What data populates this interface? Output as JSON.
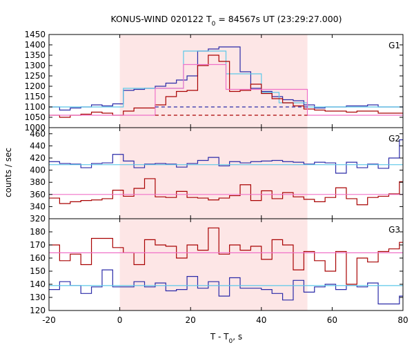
{
  "colors": {
    "shade": "#fde6e6",
    "blue": "#2a2aa8",
    "cyan": "#5cc8e8",
    "red": "#a80000",
    "pink": "#f070c8"
  },
  "chart_data": {
    "type": "line",
    "title": {
      "main": "KONUS-WIND 020122 T",
      "sub": "0",
      "rest": " = 84567s UT (23:29:27.000)"
    },
    "xlabel": {
      "main": "T - T",
      "sub": "0",
      "rest": ", s"
    },
    "ylabel": "counts / sec",
    "xlim": [
      -20,
      80
    ],
    "x_ticks": [
      -20,
      0,
      20,
      40,
      60,
      80
    ],
    "shaded_interval": [
      0,
      53
    ],
    "panels": [
      {
        "name": "G1",
        "ylim": [
          1000,
          1450
        ],
        "y_ticks": [
          1000,
          1050,
          1100,
          1150,
          1200,
          1250,
          1300,
          1350,
          1400,
          1450
        ],
        "series": [
          {
            "color": "blue",
            "style": "step",
            "edges": [
              -20,
              -17,
              -14,
              -11,
              -8,
              -5,
              -2,
              1,
              4,
              7,
              10,
              13,
              16,
              19,
              22,
              25,
              28,
              31,
              34,
              37,
              40,
              43,
              46,
              49,
              52,
              55,
              58,
              61,
              64,
              67,
              70,
              73,
              76,
              79,
              80
            ],
            "values": [
              1100,
              1085,
              1095,
              1100,
              1110,
              1105,
              1115,
              1180,
              1185,
              1190,
              1200,
              1215,
              1230,
              1250,
              1370,
              1380,
              1390,
              1390,
              1270,
              1190,
              1175,
              1150,
              1135,
              1130,
              1110,
              1095,
              1100,
              1100,
              1105,
              1105,
              1110,
              1100,
              1100,
              1100
            ]
          },
          {
            "color": "cyan",
            "style": "step",
            "edges": [
              -20,
              1,
              18,
              30,
              40,
              45,
              53,
              80
            ],
            "values": [
              1100,
              1190,
              1370,
              1260,
              1170,
              1120,
              1100
            ]
          },
          {
            "color": "red",
            "style": "step",
            "edges": [
              -20,
              -17,
              -14,
              -11,
              -8,
              -5,
              -2,
              1,
              4,
              7,
              10,
              13,
              16,
              19,
              22,
              25,
              28,
              31,
              34,
              37,
              40,
              43,
              46,
              49,
              52,
              55,
              58,
              61,
              64,
              67,
              70,
              73,
              76,
              79,
              80
            ],
            "values": [
              1060,
              1050,
              1060,
              1065,
              1075,
              1070,
              1060,
              1080,
              1095,
              1095,
              1110,
              1150,
              1175,
              1180,
              1300,
              1350,
              1320,
              1175,
              1180,
              1210,
              1165,
              1140,
              1120,
              1105,
              1090,
              1085,
              1080,
              1080,
              1075,
              1080,
              1080,
              1070,
              1070,
              1070
            ]
          },
          {
            "color": "pink",
            "style": "step",
            "edges": [
              -20,
              10,
              18,
              30,
              53,
              80
            ],
            "values": [
              1060,
              1190,
              1305,
              1185,
              1060
            ]
          },
          {
            "color": "blue",
            "style": "dashed",
            "edges": [
              10,
              53
            ],
            "values": [
              1100
            ]
          },
          {
            "color": "red",
            "style": "dashed",
            "edges": [
              10,
              53
            ],
            "values": [
              1060
            ]
          }
        ]
      },
      {
        "name": "G2",
        "ylim": [
          320,
          470
        ],
        "y_ticks": [
          320,
          340,
          360,
          380,
          400,
          420,
          440,
          460
        ],
        "series": [
          {
            "color": "blue",
            "style": "step",
            "edges": [
              -20,
              -17,
              -14,
              -11,
              -8,
              -5,
              -2,
              1,
              4,
              7,
              10,
              13,
              16,
              19,
              22,
              25,
              28,
              31,
              34,
              37,
              40,
              43,
              46,
              49,
              52,
              55,
              58,
              61,
              64,
              67,
              70,
              73,
              76,
              79,
              80
            ],
            "values": [
              414,
              411,
              410,
              404,
              411,
              412,
              426,
              415,
              404,
              410,
              411,
              410,
              405,
              411,
              416,
              421,
              407,
              414,
              412,
              414,
              415,
              416,
              414,
              413,
              410,
              413,
              412,
              395,
              413,
              404,
              410,
              403,
              420,
              450
            ]
          },
          {
            "color": "cyan",
            "style": "step",
            "edges": [
              -20,
              80
            ],
            "values": [
              409
            ]
          },
          {
            "color": "red",
            "style": "step",
            "edges": [
              -20,
              -17,
              -14,
              -11,
              -8,
              -5,
              -2,
              1,
              4,
              7,
              10,
              13,
              16,
              19,
              22,
              25,
              28,
              31,
              34,
              37,
              40,
              43,
              46,
              49,
              52,
              55,
              58,
              61,
              64,
              67,
              70,
              73,
              76,
              79,
              80
            ],
            "values": [
              354,
              345,
              348,
              350,
              351,
              353,
              367,
              357,
              370,
              386,
              356,
              355,
              365,
              355,
              354,
              351,
              354,
              358,
              376,
              350,
              366,
              353,
              363,
              356,
              352,
              348,
              355,
              371,
              353,
              343,
              355,
              357,
              361,
              381
            ]
          },
          {
            "color": "pink",
            "style": "step",
            "edges": [
              -20,
              80
            ],
            "values": [
              360
            ]
          }
        ]
      },
      {
        "name": "G3",
        "ylim": [
          120,
          190
        ],
        "y_ticks": [
          120,
          130,
          140,
          150,
          160,
          170,
          180
        ],
        "series": [
          {
            "color": "blue",
            "style": "step",
            "edges": [
              -20,
              -17,
              -14,
              -11,
              -8,
              -5,
              -2,
              1,
              4,
              7,
              10,
              13,
              16,
              19,
              22,
              25,
              28,
              31,
              34,
              37,
              40,
              43,
              46,
              49,
              52,
              55,
              58,
              61,
              64,
              67,
              70,
              73,
              76,
              79,
              80
            ],
            "values": [
              136,
              142,
              139,
              133,
              138,
              151,
              138,
              138,
              142,
              138,
              141,
              135,
              136,
              146,
              137,
              142,
              131,
              145,
              137,
              137,
              136,
              133,
              128,
              143,
              134,
              138,
              140,
              136,
              139,
              138,
              141,
              125,
              125,
              131
            ]
          },
          {
            "color": "cyan",
            "style": "step",
            "edges": [
              -20,
              80
            ],
            "values": [
              139
            ]
          },
          {
            "color": "red",
            "style": "step",
            "edges": [
              -20,
              -17,
              -14,
              -11,
              -8,
              -5,
              -2,
              1,
              4,
              7,
              10,
              13,
              16,
              19,
              22,
              25,
              28,
              31,
              34,
              37,
              40,
              43,
              46,
              49,
              52,
              55,
              58,
              61,
              64,
              67,
              70,
              73,
              76,
              79,
              80
            ],
            "values": [
              170,
              158,
              163,
              155,
              175,
              175,
              168,
              164,
              155,
              174,
              170,
              169,
              160,
              170,
              166,
              183,
              163,
              170,
              166,
              169,
              159,
              174,
              170,
              151,
              165,
              158,
              150,
              165,
              140,
              160,
              157,
              165,
              167,
              172
            ]
          },
          {
            "color": "pink",
            "style": "step",
            "edges": [
              -20,
              80
            ],
            "values": [
              164
            ]
          }
        ]
      }
    ]
  }
}
